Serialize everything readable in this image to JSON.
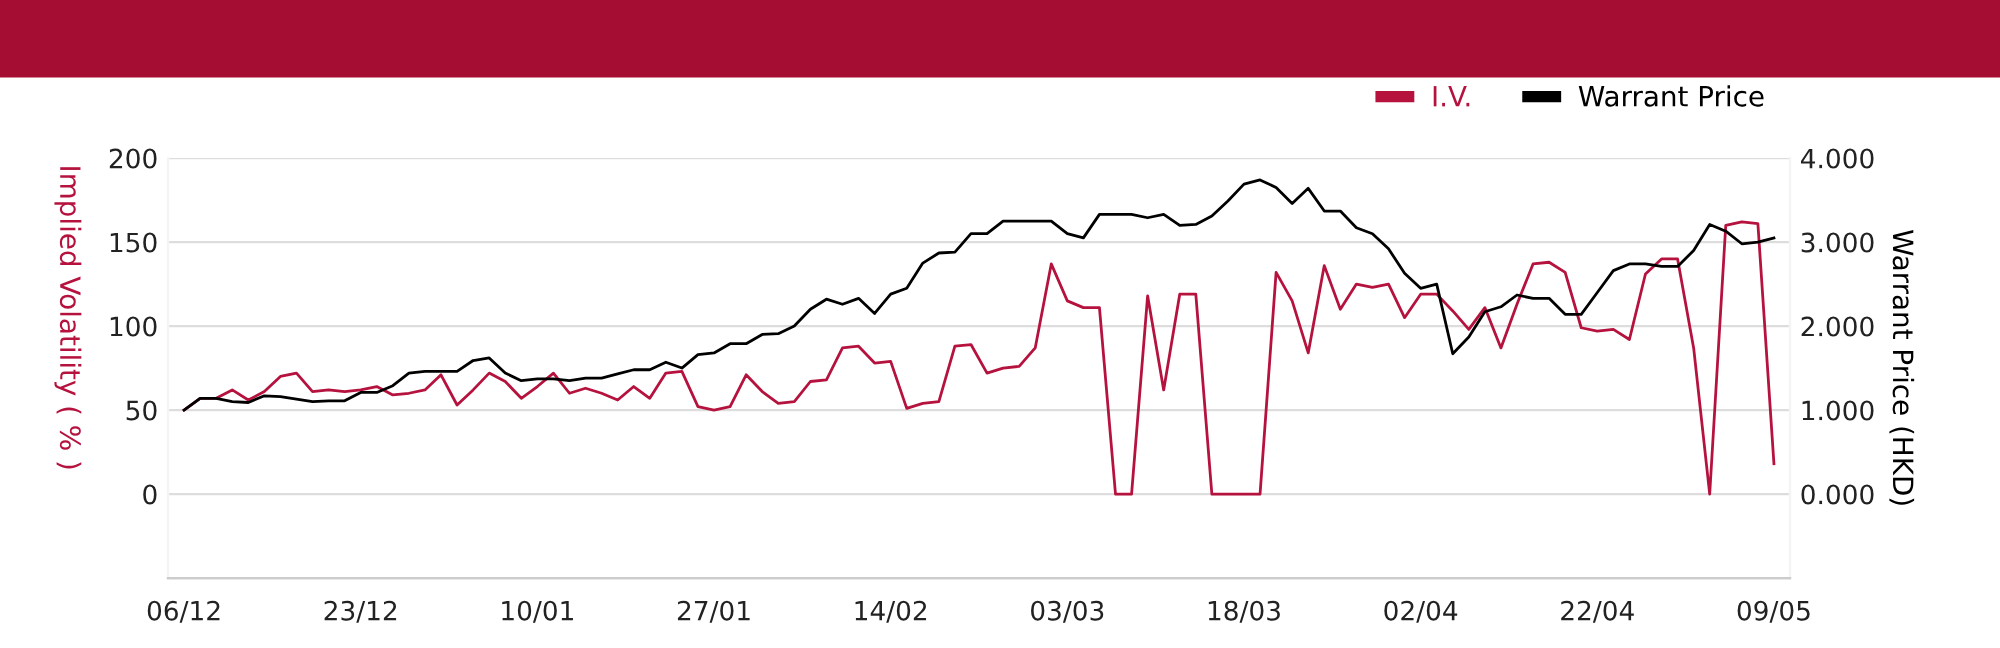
{
  "chart_data": {
    "type": "line",
    "categories": [
      "06/12",
      null,
      null,
      null,
      null,
      null,
      null,
      null,
      null,
      null,
      null,
      "23/12",
      null,
      null,
      null,
      null,
      null,
      null,
      null,
      null,
      null,
      null,
      "10/01",
      null,
      null,
      null,
      null,
      null,
      null,
      null,
      null,
      null,
      null,
      "27/01",
      null,
      null,
      null,
      null,
      null,
      null,
      null,
      null,
      null,
      null,
      "14/02",
      null,
      null,
      null,
      null,
      null,
      null,
      null,
      null,
      null,
      null,
      "03/03",
      null,
      null,
      null,
      null,
      null,
      null,
      null,
      null,
      null,
      null,
      "18/03",
      null,
      null,
      null,
      null,
      null,
      null,
      null,
      null,
      null,
      null,
      "02/04",
      null,
      null,
      null,
      null,
      null,
      null,
      null,
      null,
      null,
      null,
      "22/04",
      null,
      null,
      null,
      null,
      null,
      null,
      null,
      null,
      null,
      null,
      "09/05"
    ],
    "series": [
      {
        "name": "I.V.",
        "color": "#b5123e",
        "values": [
          50,
          57,
          57,
          62,
          56,
          61,
          70,
          72,
          61,
          62,
          61,
          62,
          64,
          59,
          60,
          62,
          71,
          53,
          62,
          72,
          67,
          57,
          64,
          72,
          60,
          63,
          60,
          56,
          64,
          57,
          72,
          73,
          52,
          50,
          52,
          71,
          61,
          54,
          55,
          67,
          68,
          87,
          88,
          78,
          79,
          51,
          54,
          55,
          88,
          89,
          72,
          75,
          76,
          87,
          137,
          115,
          111,
          111,
          0,
          0,
          118,
          62,
          119,
          119,
          0,
          0,
          0,
          0,
          132,
          115,
          84,
          136,
          110,
          125,
          123,
          125,
          105,
          119,
          119,
          109,
          98,
          111,
          87,
          113,
          137,
          138,
          132,
          99,
          97,
          98,
          92,
          131,
          140,
          140,
          87,
          0,
          160,
          162,
          161,
          18
        ]
      },
      {
        "name": "Warrant Price",
        "color": "#000000",
        "axis": "y2",
        "values": [
          1.0,
          1.14,
          1.14,
          1.1,
          1.09,
          1.17,
          1.16,
          1.13,
          1.1,
          1.11,
          1.11,
          1.21,
          1.21,
          1.29,
          1.44,
          1.46,
          1.46,
          1.46,
          1.59,
          1.62,
          1.44,
          1.35,
          1.37,
          1.37,
          1.35,
          1.38,
          1.38,
          1.43,
          1.48,
          1.48,
          1.57,
          1.5,
          1.66,
          1.68,
          1.79,
          1.79,
          1.9,
          1.91,
          2.0,
          2.2,
          2.32,
          2.26,
          2.33,
          2.15,
          2.38,
          2.45,
          2.75,
          2.87,
          2.88,
          3.1,
          3.1,
          3.25,
          3.25,
          3.25,
          3.25,
          3.1,
          3.05,
          3.33,
          3.33,
          3.33,
          3.29,
          3.33,
          3.2,
          3.21,
          3.31,
          3.49,
          3.69,
          3.74,
          3.65,
          3.46,
          3.64,
          3.37,
          3.37,
          3.17,
          3.1,
          2.92,
          2.63,
          2.45,
          2.5,
          1.67,
          1.87,
          2.17,
          2.23,
          2.37,
          2.33,
          2.33,
          2.14,
          2.14,
          2.4,
          2.66,
          2.74,
          2.74,
          2.71,
          2.71,
          2.9,
          3.21,
          3.13,
          2.98,
          3.0,
          3.05
        ]
      }
    ],
    "ylabel": "Implied Volatility ( % )",
    "y2label": "Warrant Price (HKD)",
    "ylim": [
      -50,
      200
    ],
    "yticks": [
      0,
      50,
      100,
      150,
      200
    ],
    "y2lim": [
      -1,
      4
    ],
    "y2ticks": [
      {
        "value": 0,
        "label": "0.000"
      },
      {
        "value": 1,
        "label": "1.000"
      },
      {
        "value": 2,
        "label": "2.000"
      },
      {
        "value": 3,
        "label": "3.000"
      },
      {
        "value": 4,
        "label": "4.000"
      }
    ],
    "grid": "y",
    "legend": "top right",
    "marker": "none",
    "line_style": "solid"
  }
}
